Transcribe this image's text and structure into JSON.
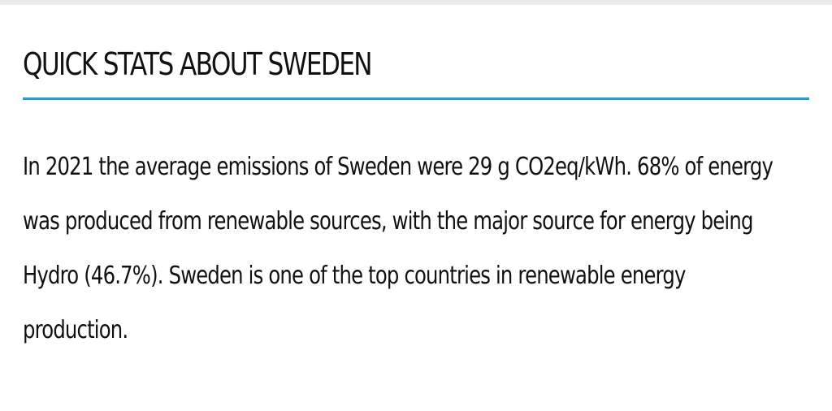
{
  "section": {
    "title": "QUICK STATS ABOUT SWEDEN",
    "paragraph": "In 2021 the average emissions of Sweden were 29 g CO2eq/kWh. 68% of energy was produced from renewable sources, with the major source for energy being Hydro (46.7%). Sweden is one of the top countries in renewable energy production."
  },
  "colors": {
    "divider": "#2b9bd4",
    "text": "#111111"
  }
}
